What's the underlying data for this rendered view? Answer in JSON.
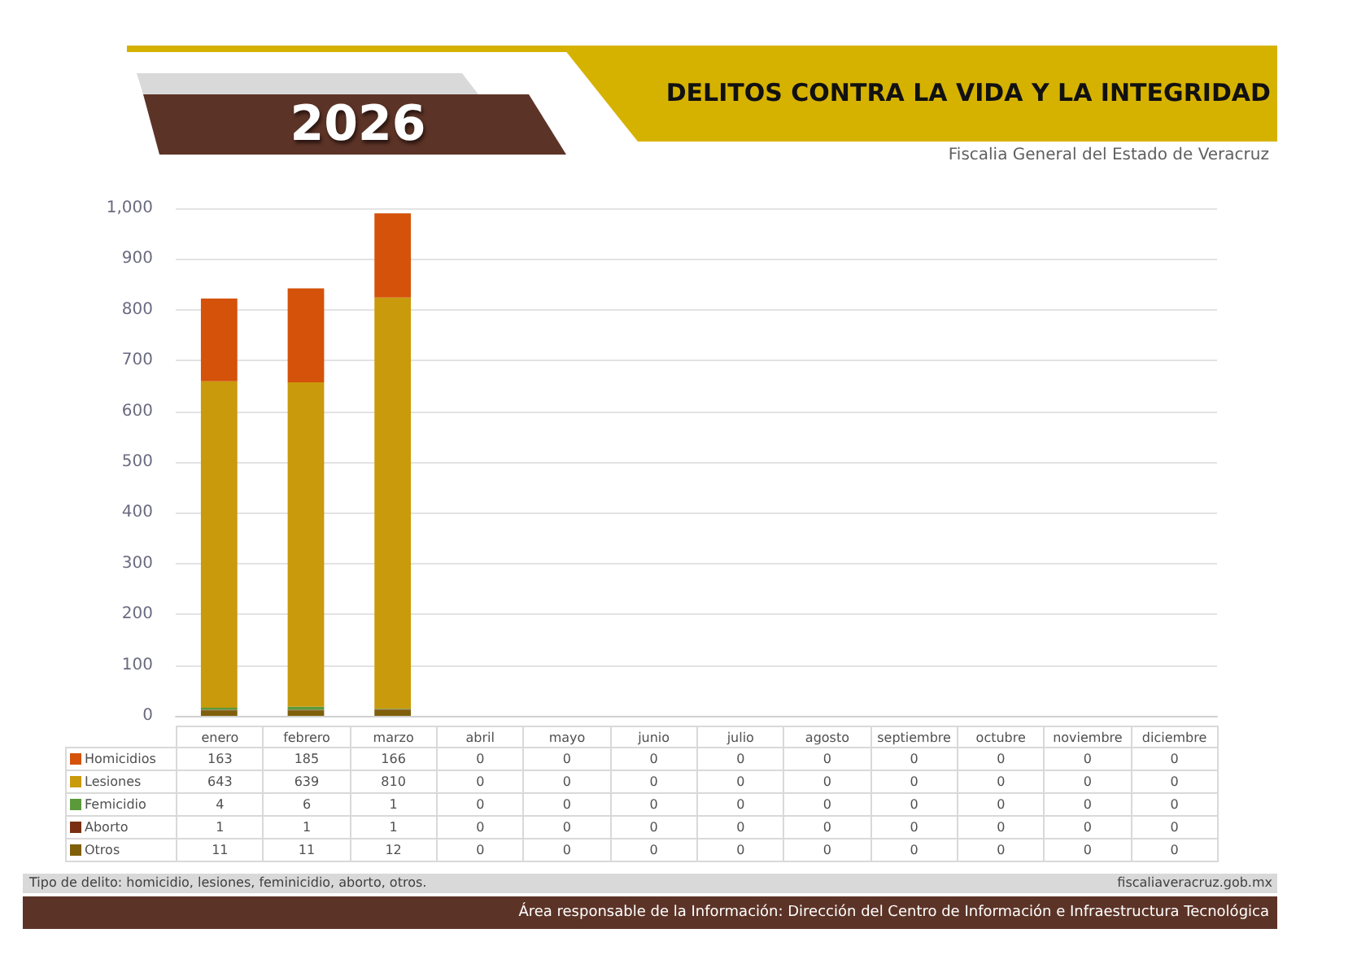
{
  "chart_data": {
    "type": "bar",
    "title": "DELITOS CONTRA LA VIDA Y LA INTEGRIDAD",
    "subtitle": "Fiscalia General del Estado de Veracruz",
    "annotations": [
      "2026",
      "Tipo de delito: homicidio, lesiones, feminicidio, aborto, otros.",
      "fiscaliaveracruz.gob.mx",
      "Área responsable de la Información: Dirección del Centro de Información e Infraestructura Tecnológica"
    ],
    "categories": [
      "enero",
      "febrero",
      "marzo",
      "abril",
      "mayo",
      "junio",
      "julio",
      "agosto",
      "septiembre",
      "octubre",
      "noviembre",
      "diciembre"
    ],
    "series": [
      {
        "name": "Otros",
        "color": "#7f5f0a",
        "values": [
          11,
          11,
          12,
          0,
          0,
          0,
          0,
          0,
          0,
          0,
          0,
          0
        ]
      },
      {
        "name": "Aborto",
        "color": "#7a2f12",
        "values": [
          1,
          1,
          1,
          0,
          0,
          0,
          0,
          0,
          0,
          0,
          0,
          0
        ]
      },
      {
        "name": "Femicidio",
        "color": "#5b9a3b",
        "values": [
          4,
          6,
          1,
          0,
          0,
          0,
          0,
          0,
          0,
          0,
          0,
          0
        ]
      },
      {
        "name": "Lesiones",
        "color": "#c99a0c",
        "values": [
          643,
          639,
          810,
          0,
          0,
          0,
          0,
          0,
          0,
          0,
          0,
          0
        ]
      },
      {
        "name": "Homicidios",
        "color": "#d4520a",
        "values": [
          163,
          185,
          166,
          0,
          0,
          0,
          0,
          0,
          0,
          0,
          0,
          0
        ]
      }
    ],
    "stacked": true,
    "ylim": [
      0,
      1000
    ],
    "yticks": [
      0,
      100,
      200,
      300,
      400,
      500,
      600,
      700,
      800,
      900,
      {
        "value": 1000,
        "label": "1,000"
      }
    ],
    "grid": "y",
    "legend": "bottom",
    "data_labels": true
  }
}
